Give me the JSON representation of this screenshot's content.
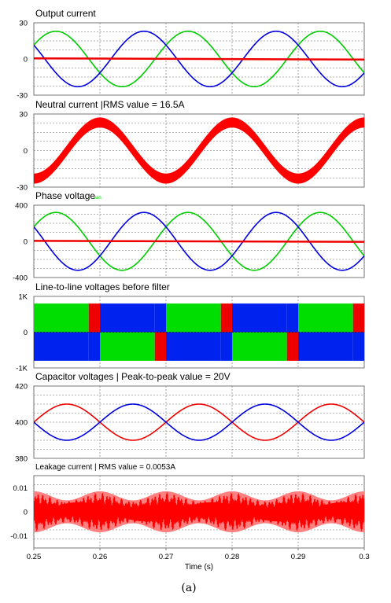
{
  "chart_data": [
    {
      "type": "line",
      "title": "Output current",
      "ylim": [
        -30,
        30
      ],
      "yticks": [
        {
          "value": 30,
          "label": "30"
        },
        {
          "value": 0,
          "label": "0"
        },
        {
          "value": -30,
          "label": "-30"
        }
      ],
      "xlim": [
        0.25,
        0.3
      ],
      "grid": true,
      "series": [
        {
          "kind": "sine",
          "amplitude": 23,
          "frequency_hz": 50,
          "phase_deg": 30,
          "color": "#00cc00"
        },
        {
          "kind": "sine",
          "amplitude": 23,
          "frequency_hz": 50,
          "phase_deg": 150,
          "color": "#0000dd"
        },
        {
          "kind": "line",
          "x": [
            0.25,
            0.3
          ],
          "y": [
            0.5,
            -0.5
          ],
          "color": "#ee0000"
        }
      ]
    },
    {
      "type": "area",
      "title": "Neutral current |RMS value = 16.5A",
      "ylim": [
        -30,
        30
      ],
      "yticks": [
        {
          "value": 30,
          "label": "30"
        },
        {
          "value": 0,
          "label": "0"
        },
        {
          "value": -30,
          "label": "-30"
        }
      ],
      "xlim": [
        0.25,
        0.3
      ],
      "grid": true,
      "series": [
        {
          "kind": "band",
          "amplitude": 23,
          "frequency_hz": 50,
          "phase_deg": 270,
          "ripple_band": 8,
          "color": "#ff0000"
        }
      ]
    },
    {
      "type": "line",
      "title": "Phase voltage",
      "legend_label": "van",
      "ylim": [
        -400,
        400
      ],
      "yticks": [
        {
          "value": 400,
          "label": "400"
        },
        {
          "value": 0,
          "label": "0"
        },
        {
          "value": -400,
          "label": "-400"
        }
      ],
      "xlim": [
        0.25,
        0.3
      ],
      "grid": true,
      "series": [
        {
          "kind": "sine",
          "amplitude": 320,
          "frequency_hz": 50,
          "phase_deg": 30,
          "color": "#00cc00"
        },
        {
          "kind": "sine",
          "amplitude": 320,
          "frequency_hz": 50,
          "phase_deg": 150,
          "color": "#0000dd"
        },
        {
          "kind": "line",
          "x": [
            0.25,
            0.3
          ],
          "y": [
            5,
            -5
          ],
          "color": "#ee0000"
        }
      ]
    },
    {
      "type": "area",
      "title": "Line-to-line voltages before filter",
      "ylim": [
        -1000,
        1000
      ],
      "yticks": [
        {
          "value": 1000,
          "label": "1K"
        },
        {
          "value": 0,
          "label": "0"
        },
        {
          "value": -1000,
          "label": "-1K"
        }
      ],
      "xlim": [
        0.25,
        0.3
      ],
      "grid": true,
      "segments": [
        {
          "t0": 0.25,
          "t1": 0.2583,
          "upper": "#00dd00",
          "lower": "#0022ee"
        },
        {
          "t0": 0.2583,
          "t1": 0.26,
          "upper": "#ee0000",
          "lower": "#0022ee"
        },
        {
          "t0": 0.26,
          "t1": 0.2683,
          "upper": "#0022ee",
          "lower": "#00dd00"
        },
        {
          "t0": 0.2683,
          "t1": 0.27,
          "upper": "#0022ee",
          "lower": "#ee0000"
        },
        {
          "t0": 0.27,
          "t1": 0.2783,
          "upper": "#00dd00",
          "lower": "#0022ee"
        },
        {
          "t0": 0.2783,
          "t1": 0.28,
          "upper": "#ee0000",
          "lower": "#0022ee"
        },
        {
          "t0": 0.28,
          "t1": 0.2883,
          "upper": "#0022ee",
          "lower": "#00dd00"
        },
        {
          "t0": 0.2883,
          "t1": 0.29,
          "upper": "#0022ee",
          "lower": "#ee0000"
        },
        {
          "t0": 0.29,
          "t1": 0.2983,
          "upper": "#00dd00",
          "lower": "#0022ee"
        },
        {
          "t0": 0.2983,
          "t1": 0.3,
          "upper": "#ee0000",
          "lower": "#0022ee"
        }
      ],
      "band_levels": [
        800,
        0,
        -800
      ]
    },
    {
      "type": "line",
      "title": "Capacitor voltages | Peak-to-peak value = 20V",
      "ylim": [
        380,
        420
      ],
      "yticks": [
        {
          "value": 420,
          "label": "420"
        },
        {
          "value": 400,
          "label": "400"
        },
        {
          "value": 380,
          "label": "380"
        }
      ],
      "xlim": [
        0.25,
        0.3
      ],
      "grid": true,
      "series": [
        {
          "kind": "sine",
          "offset": 400,
          "amplitude": 10,
          "frequency_hz": 50,
          "phase_deg": 0,
          "color": "#ee0000"
        },
        {
          "kind": "sine",
          "offset": 400,
          "amplitude": 10,
          "frequency_hz": 50,
          "phase_deg": 180,
          "color": "#0000dd"
        }
      ]
    },
    {
      "type": "area",
      "title": "Leakage current | RMS value = 0.0053A",
      "title_small": true,
      "ylim": [
        -0.015,
        0.015
      ],
      "yticks": [
        {
          "value": 0.01,
          "label": "0.01"
        },
        {
          "value": 0,
          "label": "0"
        },
        {
          "value": -0.01,
          "label": "-0.01"
        }
      ],
      "xlim": [
        0.25,
        0.3
      ],
      "xticks": [
        0.25,
        0.26,
        0.27,
        0.28,
        0.29,
        0.3
      ],
      "xticklabels": [
        "0.25",
        "0.26",
        "0.27",
        "0.28",
        "0.29",
        "0.3"
      ],
      "xlabel": "Time (s)",
      "grid": true,
      "series": [
        {
          "kind": "hf_band",
          "amplitude": 0.0085,
          "center_amplitude": 0.003,
          "frequency_hz": 50,
          "color": "#ff0000",
          "fill": "#ff8080"
        }
      ]
    }
  ],
  "caption": "(a)",
  "colors": {
    "grid": "#666666",
    "frame": "#777777"
  }
}
